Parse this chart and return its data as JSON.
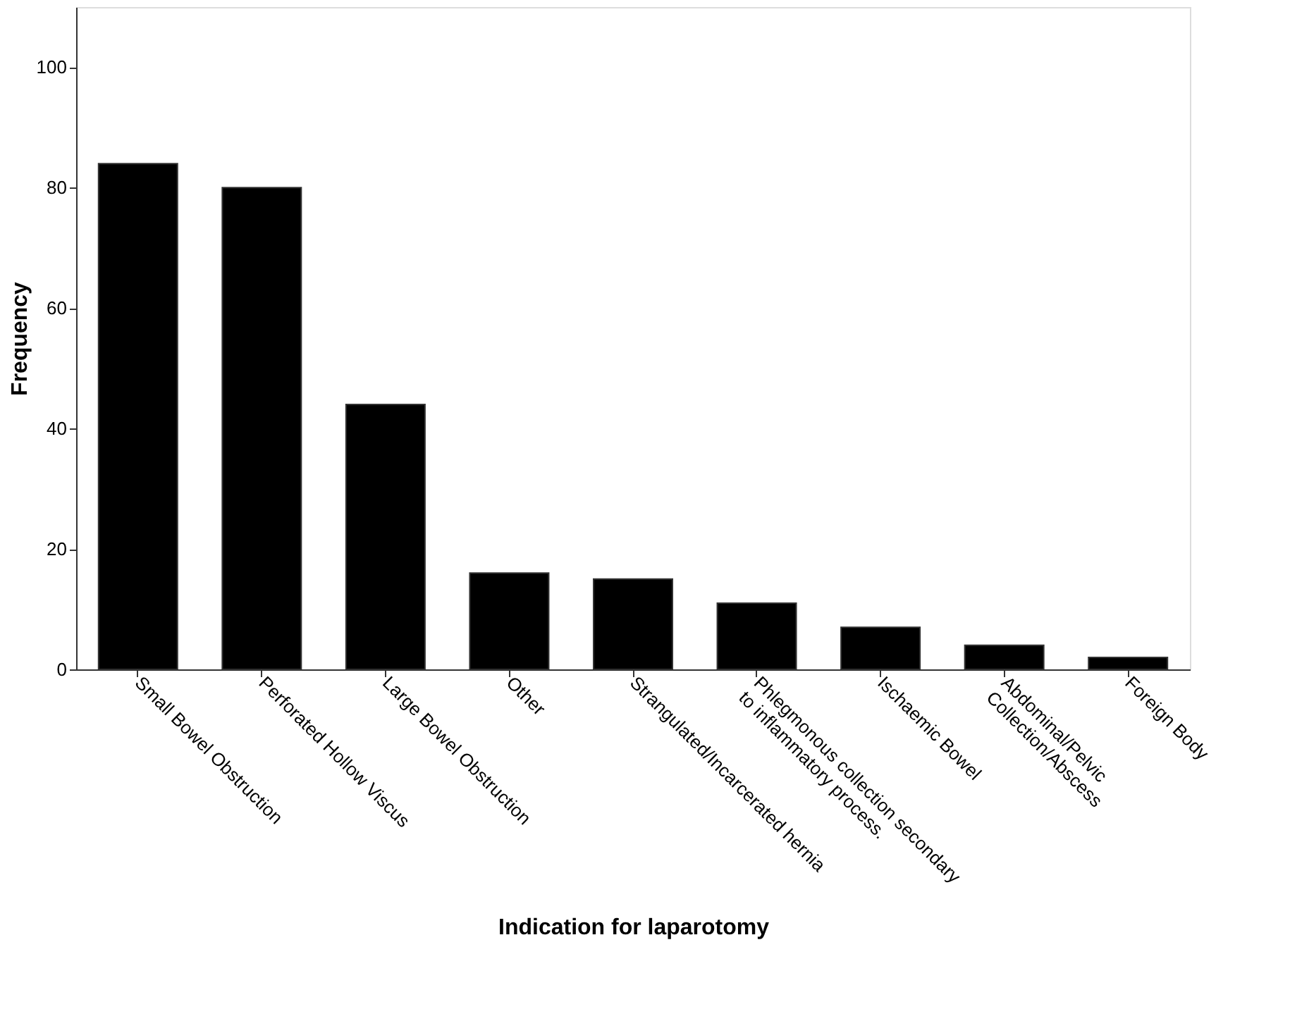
{
  "chart_data": {
    "type": "bar",
    "xlabel": "Indication for laparotomy",
    "ylabel": "Frequency",
    "categories": [
      "Small Bowel Obstruction",
      "Perforated Hollow Viscus",
      "Large Bowel Obstruction",
      "Other",
      "Strangulated/Incarcerated hernia",
      "Phlegmonous collection secondary\nto inflammatory process.",
      "Ischaemic Bowel",
      "Abdominal/Pelvic\nCollection/Abscess",
      "Foreign Body"
    ],
    "values": [
      84,
      80,
      44,
      16,
      15,
      11,
      7,
      4,
      2
    ],
    "color": "#000000",
    "ylim": [
      0,
      110
    ],
    "yticks": [
      0,
      20,
      40,
      60,
      80,
      100
    ],
    "grid": false
  }
}
